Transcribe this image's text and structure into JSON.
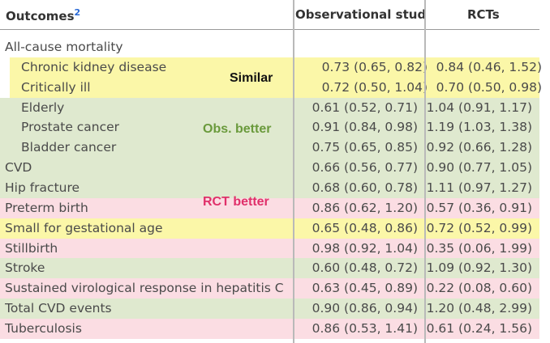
{
  "header": {
    "outcomes": "Outcomes",
    "footnote": "2",
    "observational": "Observational stud",
    "rcts": "RCTs"
  },
  "rows": [
    {
      "label": "All-cause mortality"
    },
    {
      "label": "Chronic kidney disease",
      "obs": "0.73 (0.65, 0.82)",
      "rct": "0.84 (0.46, 1.52)"
    },
    {
      "label": "Critically ill",
      "obs": "0.72 (0.50, 1.04)",
      "rct": "0.70 (0.50, 0.98)"
    },
    {
      "label": "Elderly",
      "obs": "0.61 (0.52, 0.71)",
      "rct": "1.04 (0.91, 1.17)"
    },
    {
      "label": "Prostate cancer",
      "obs": "0.91 (0.84, 0.98)",
      "rct": "1.19 (1.03, 1.38)"
    },
    {
      "label": "Bladder cancer",
      "obs": "0.75 (0.65, 0.85)",
      "rct": "0.92 (0.66, 1.28)"
    },
    {
      "label": "CVD",
      "obs": "0.66 (0.56, 0.77)",
      "rct": "0.90 (0.77, 1.05)"
    },
    {
      "label": "Hip fracture",
      "obs": "0.68 (0.60, 0.78)",
      "rct": "1.11 (0.97, 1.27)"
    },
    {
      "label": "Preterm birth",
      "obs": "0.86 (0.62, 1.20)",
      "rct": "0.57 (0.36, 0.91)"
    },
    {
      "label": "Small for gestational age",
      "obs": "0.65 (0.48, 0.86)",
      "rct": "0.72 (0.52, 0.99)"
    },
    {
      "label": "Stillbirth",
      "obs": "0.98 (0.92, 1.04)",
      "rct": "0.35 (0.06, 1.99)"
    },
    {
      "label": "Stroke",
      "obs": "0.60 (0.48, 0.72)",
      "rct": "1.09 (0.92, 1.30)"
    },
    {
      "label": "Sustained virological response in hepatitis C v",
      "obs": "0.63 (0.45, 0.89)",
      "rct": "0.22 (0.08, 0.60)"
    },
    {
      "label": "Total CVD events",
      "obs": "0.90 (0.86, 0.94)",
      "rct": "1.20 (0.48, 2.99)"
    },
    {
      "label": "Tuberculosis",
      "obs": "0.86 (0.53, 1.41)",
      "rct": "0.61 (0.24, 1.56)"
    }
  ],
  "annotations": {
    "similar": "Similar",
    "obs_better": "Obs. better",
    "rct_better": "RCT better"
  }
}
